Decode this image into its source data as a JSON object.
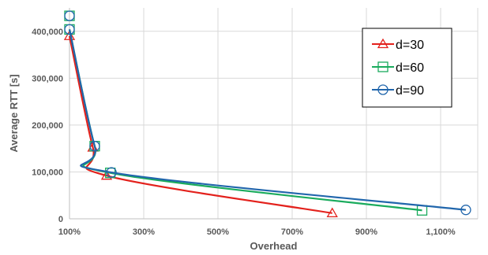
{
  "chart_data": {
    "type": "line",
    "xlabel": "Overhead",
    "ylabel": "Average RTT [s]",
    "xlim": [
      100,
      1200
    ],
    "ylim": [
      0,
      450000
    ],
    "x_ticks": [
      100,
      300,
      500,
      700,
      900,
      1100
    ],
    "x_tick_labels": [
      "100%",
      "300%",
      "500%",
      "700%",
      "900%",
      "1,100%"
    ],
    "y_ticks": [
      0,
      100000,
      200000,
      300000,
      400000
    ],
    "y_tick_labels": [
      "0",
      "100,000",
      "200,000",
      "300,000",
      "400,000"
    ],
    "grid": true,
    "legend_position": "top-right",
    "series": [
      {
        "name": "d=30",
        "color": "#e3211c",
        "marker": "triangle",
        "points": [
          [
            100,
            390000
          ],
          [
            163,
            152000
          ],
          [
            200,
            92000
          ],
          [
            808,
            12000
          ]
        ]
      },
      {
        "name": "d=60",
        "color": "#1aab5d",
        "marker": "square",
        "points": [
          [
            100,
            404000
          ],
          [
            100,
            433000
          ],
          [
            168,
            155000
          ],
          [
            210,
            98000
          ],
          [
            1050,
            18000
          ]
        ]
      },
      {
        "name": "d=90",
        "color": "#2166ac",
        "marker": "circle",
        "points": [
          [
            100,
            404000
          ],
          [
            100,
            433000
          ],
          [
            168,
            155000
          ],
          [
            213,
            99000
          ],
          [
            1168,
            19000
          ]
        ]
      }
    ]
  }
}
